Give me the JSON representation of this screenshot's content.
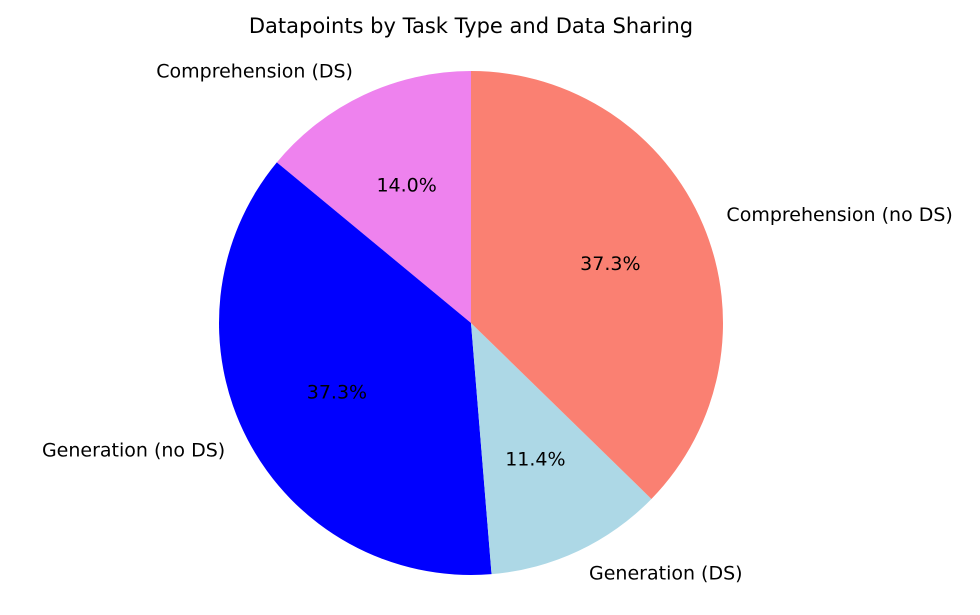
{
  "chart_data": {
    "type": "pie",
    "title": "Datapoints by Task Type and Data Sharing",
    "labels": [
      "Comprehension (DS)",
      "Generation (no DS)",
      "Generation (DS)",
      "Comprehension (no DS)"
    ],
    "values": [
      14.0,
      37.3,
      11.4,
      37.3
    ],
    "percent_labels": [
      "14.0%",
      "37.3%",
      "11.4%",
      "37.3%"
    ],
    "colors": [
      "#ee82ee",
      "#0000ff",
      "#add8e6",
      "#fa8072"
    ],
    "start": "top",
    "direction": "counterclockwise",
    "legend": "none"
  }
}
